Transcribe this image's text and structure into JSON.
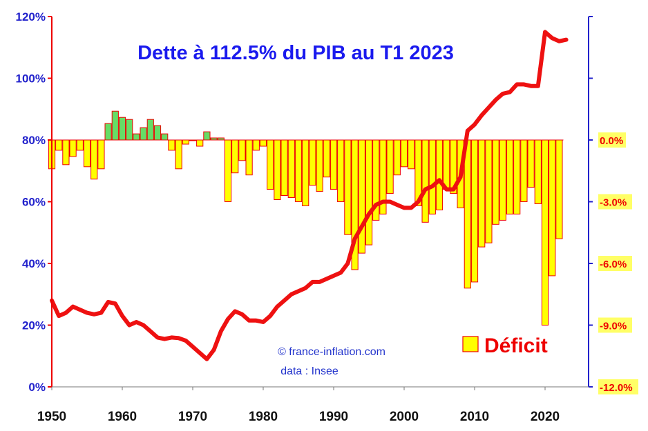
{
  "chart_data": {
    "type": "bar+line",
    "title": "Dette à 112.5% du PIB au T1 2023",
    "credit": "© france-inflation.com",
    "source": "data : Insee",
    "legend": {
      "bar_label": "Déficit",
      "placement": "bottom-right"
    },
    "colors": {
      "debt_line": "#ee1111",
      "deficit_bar": "#ffff00",
      "surplus_bar": "#66dd66",
      "bar_edge": "#ee0000",
      "left_axis": "#2222cc",
      "right_axis": "#ee0000",
      "title": "#1a1aee",
      "right_tick_highlight": "#ffff66"
    },
    "x_axis": {
      "ticks": [
        "1950",
        "1960",
        "1970",
        "1980",
        "1990",
        "2000",
        "2010",
        "2020"
      ],
      "range": [
        1950,
        2024
      ]
    },
    "y_left": {
      "ticks": [
        "0%",
        "20%",
        "40%",
        "60%",
        "80%",
        "100%",
        "120%"
      ],
      "range": [
        0,
        120
      ],
      "unit": "% du PIB"
    },
    "y_right": {
      "ticks": [
        "0.0%",
        "-3.0%",
        "-6.0%",
        "-9.0%",
        "-12.0%"
      ],
      "range": [
        -12,
        6
      ],
      "unit": "% du PIB"
    },
    "series": [
      {
        "name": "Dette",
        "kind": "line",
        "x": [
          1950,
          1951,
          1952,
          1953,
          1954,
          1955,
          1956,
          1957,
          1958,
          1959,
          1960,
          1961,
          1962,
          1963,
          1964,
          1965,
          1966,
          1967,
          1968,
          1969,
          1970,
          1971,
          1972,
          1973,
          1974,
          1975,
          1976,
          1977,
          1978,
          1979,
          1980,
          1981,
          1982,
          1983,
          1984,
          1985,
          1986,
          1987,
          1988,
          1989,
          1990,
          1991,
          1992,
          1993,
          1994,
          1995,
          1996,
          1997,
          1998,
          1999,
          2000,
          2001,
          2002,
          2003,
          2004,
          2005,
          2006,
          2007,
          2008,
          2009,
          2010,
          2011,
          2012,
          2013,
          2014,
          2015,
          2016,
          2017,
          2018,
          2019,
          2020,
          2021,
          2022,
          2023
        ],
        "values": [
          28,
          23,
          24,
          26,
          25,
          24,
          23.5,
          24,
          27.5,
          27,
          23,
          20,
          21,
          20,
          18,
          16,
          15.5,
          16,
          15.8,
          15,
          13,
          11,
          9,
          12,
          18,
          22,
          24.5,
          23.5,
          21.5,
          21.5,
          21,
          23,
          26,
          28,
          30,
          31,
          32,
          34,
          34,
          35,
          36,
          37,
          40,
          48,
          52,
          56,
          59,
          60,
          60,
          59,
          58,
          58,
          60,
          64,
          65,
          67,
          64,
          64,
          68,
          83,
          85,
          88,
          90.5,
          93,
          95,
          95.5,
          98,
          98,
          97.5,
          97.5,
          115,
          113,
          112,
          112.5
        ]
      },
      {
        "name": "Déficit",
        "kind": "bar",
        "axis": "right",
        "x": [
          1950,
          1951,
          1952,
          1953,
          1954,
          1955,
          1956,
          1957,
          1958,
          1959,
          1960,
          1961,
          1962,
          1963,
          1964,
          1965,
          1966,
          1967,
          1968,
          1969,
          1970,
          1971,
          1972,
          1973,
          1974,
          1975,
          1976,
          1977,
          1978,
          1979,
          1980,
          1981,
          1982,
          1983,
          1984,
          1985,
          1986,
          1987,
          1988,
          1989,
          1990,
          1991,
          1992,
          1993,
          1994,
          1995,
          1996,
          1997,
          1998,
          1999,
          2000,
          2001,
          2002,
          2003,
          2004,
          2005,
          2006,
          2007,
          2008,
          2009,
          2010,
          2011,
          2012,
          2013,
          2014,
          2015,
          2016,
          2017,
          2018,
          2019,
          2020,
          2021,
          2022
        ],
        "values": [
          -1.4,
          -0.5,
          -1.2,
          -0.8,
          -0.5,
          -1.3,
          -1.9,
          -1.4,
          0.8,
          1.4,
          1.1,
          1.0,
          0.3,
          0.6,
          1.0,
          0.7,
          0.3,
          -0.5,
          -1.4,
          -0.2,
          0,
          -0.3,
          0.4,
          0.1,
          0.1,
          -3.0,
          -1.6,
          -1.0,
          -1.7,
          -0.5,
          -0.3,
          -2.4,
          -2.9,
          -2.7,
          -2.8,
          -3.0,
          -3.2,
          -2.2,
          -2.5,
          -1.8,
          -2.4,
          -3.0,
          -4.6,
          -6.3,
          -5.5,
          -5.1,
          -3.9,
          -3.6,
          -2.6,
          -1.7,
          -1.3,
          -1.4,
          -3.2,
          -4.0,
          -3.6,
          -3.4,
          -2.4,
          -2.6,
          -3.3,
          -7.2,
          -6.9,
          -5.2,
          -5.0,
          -4.1,
          -3.9,
          -3.6,
          -3.6,
          -3.0,
          -2.3,
          -3.1,
          -9.0,
          -6.6,
          -4.8
        ]
      }
    ],
    "grid": false
  }
}
